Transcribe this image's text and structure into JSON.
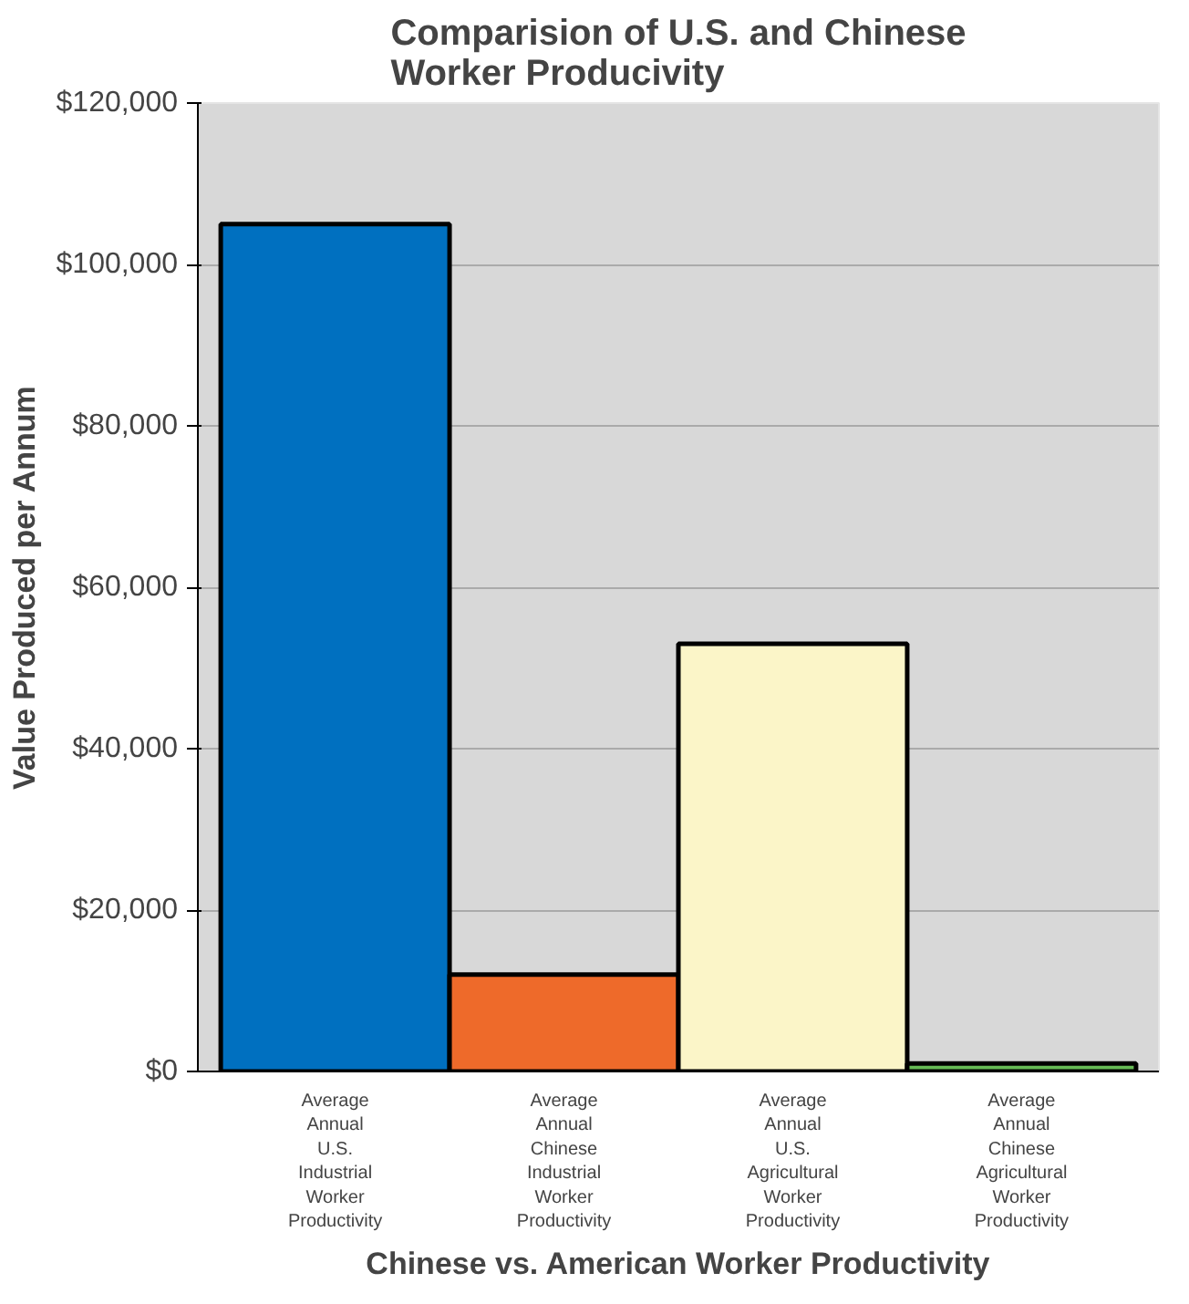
{
  "chart_data": {
    "type": "bar",
    "title": "Comparision of U.S. and Chinese\nWorker Producivity",
    "xlabel": "Chinese vs. American Worker Productivity",
    "ylabel": "Value Produced per Annum",
    "categories": [
      "Average Annual U.S. Industrial Worker Productivity",
      "Average Annual Chinese Industrial Worker Productivity",
      "Average Annual U.S. Agricultural Worker Productivity",
      "Average Annual Chinese Agricultural Worker Productivity"
    ],
    "values": [
      105000,
      12000,
      53000,
      1000
    ],
    "colors": [
      "#0070c0",
      "#ee6a2a",
      "#fbf5c8",
      "#66bb55"
    ],
    "ylim": [
      0,
      120000
    ],
    "yticks": [
      {
        "value": 0,
        "label": "$0"
      },
      {
        "value": 20000,
        "label": "$20,000"
      },
      {
        "value": 40000,
        "label": "$40,000"
      },
      {
        "value": 60000,
        "label": "$60,000"
      },
      {
        "value": 80000,
        "label": "$80,000"
      },
      {
        "value": 100000,
        "label": "$100,000"
      },
      {
        "value": 120000,
        "label": "$120,000"
      }
    ],
    "grid": "y"
  }
}
